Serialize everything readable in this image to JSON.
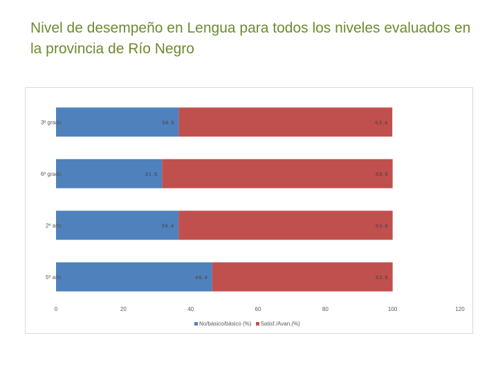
{
  "slide": {
    "title": "Nivel de desempeño en Lengua para todos los niveles evaluados en la provincia de Río Negro"
  },
  "chart_data": {
    "type": "bar",
    "orientation": "horizontal",
    "stacked": true,
    "title": "",
    "categories": [
      "3º grado",
      "6º grado",
      "2º año",
      "5º año"
    ],
    "series": [
      {
        "name": "No/básico/básico (%)",
        "values": [
          36.5,
          31.5,
          36.4,
          46.4
        ],
        "color": "#4f81bd"
      },
      {
        "name": "Satisf./Avan.(%)",
        "values": [
          63.4,
          68.5,
          63.6,
          53.6
        ],
        "color": "#c0504d"
      }
    ],
    "data_labels": [
      [
        "36.5",
        "31.5",
        "36.4",
        "46.4"
      ],
      [
        "63.4",
        "68.5",
        "63.6",
        "53.6"
      ]
    ],
    "xlim": [
      0,
      120
    ],
    "xticks": [
      0,
      20,
      40,
      60,
      80,
      100,
      120
    ],
    "xlabel": "",
    "ylabel": "",
    "grid": false,
    "legend_position": "bottom"
  }
}
